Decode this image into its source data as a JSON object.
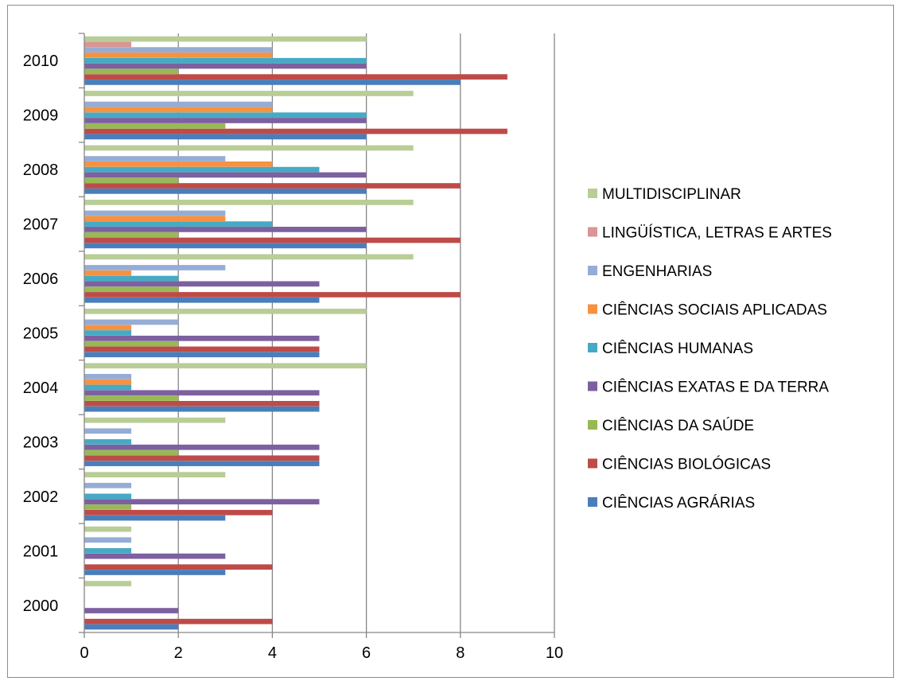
{
  "chart_data": {
    "type": "bar",
    "orientation": "horizontal",
    "categories": [
      "2000",
      "2001",
      "2002",
      "2003",
      "2004",
      "2005",
      "2006",
      "2007",
      "2008",
      "2009",
      "2010"
    ],
    "xlim": [
      0,
      10
    ],
    "x_ticks": [
      "0",
      "2",
      "4",
      "6",
      "8",
      "10"
    ],
    "grid": true,
    "legend_position": "right",
    "series": [
      {
        "name": "CIÊNCIAS AGRÁRIAS",
        "color": "#4a7ebb",
        "values": [
          2,
          3,
          3,
          5,
          5,
          5,
          5,
          6,
          6,
          6,
          8
        ]
      },
      {
        "name": "CIÊNCIAS BIOLÓGICAS",
        "color": "#be4b48",
        "values": [
          4,
          4,
          4,
          5,
          5,
          5,
          8,
          8,
          8,
          9,
          9
        ]
      },
      {
        "name": "CIÊNCIAS DA SAÚDE",
        "color": "#98b954",
        "values": [
          0,
          0,
          1,
          2,
          2,
          2,
          2,
          2,
          2,
          3,
          2
        ]
      },
      {
        "name": "CIÊNCIAS EXATAS E DA TERRA",
        "color": "#7d60a0",
        "values": [
          2,
          3,
          5,
          5,
          5,
          5,
          5,
          6,
          6,
          6,
          6
        ]
      },
      {
        "name": "CIÊNCIAS HUMANAS",
        "color": "#46aac5",
        "values": [
          0,
          1,
          1,
          1,
          1,
          1,
          2,
          4,
          5,
          6,
          6
        ]
      },
      {
        "name": "CIÊNCIAS SOCIAIS APLICADAS",
        "color": "#f69240",
        "values": [
          0,
          0,
          0,
          0,
          1,
          1,
          1,
          3,
          4,
          4,
          4
        ]
      },
      {
        "name": "ENGENHARIAS",
        "color": "#95add6",
        "values": [
          0,
          1,
          1,
          1,
          1,
          2,
          3,
          3,
          3,
          4,
          4
        ]
      },
      {
        "name": "LINGÜÍSTICA, LETRAS E ARTES",
        "color": "#d99694",
        "values": [
          0,
          0,
          0,
          0,
          0,
          0,
          0,
          0,
          0,
          0,
          1
        ]
      },
      {
        "name": "MULTIDISCIPLINAR",
        "color": "#b9cd96",
        "values": [
          1,
          1,
          3,
          3,
          6,
          6,
          7,
          7,
          7,
          7,
          6
        ]
      }
    ]
  }
}
